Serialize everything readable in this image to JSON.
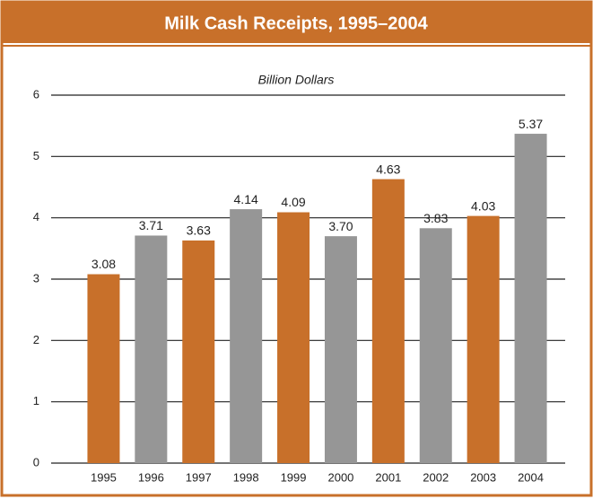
{
  "chart_data": {
    "type": "bar",
    "title": "Milk Cash Receipts, 1995–2004",
    "subtitle": "Billion Dollars",
    "categories": [
      "1995",
      "1996",
      "1997",
      "1998",
      "1999",
      "2000",
      "2001",
      "2002",
      "2003",
      "2004"
    ],
    "values": [
      3.08,
      3.71,
      3.63,
      4.14,
      4.09,
      3.7,
      4.63,
      3.83,
      4.03,
      5.37
    ],
    "value_labels": [
      "3.08",
      "3.71",
      "3.63",
      "4.14",
      "4.09",
      "3.70",
      "4.63",
      "3.83",
      "4.03",
      "5.37"
    ],
    "colors": [
      "#c8702a",
      "#969696",
      "#c8702a",
      "#969696",
      "#c8702a",
      "#969696",
      "#c8702a",
      "#969696",
      "#c8702a",
      "#969696"
    ],
    "ylim": [
      0,
      6
    ],
    "yticks": [
      0,
      1,
      2,
      3,
      4,
      5,
      6
    ],
    "grid": true
  }
}
